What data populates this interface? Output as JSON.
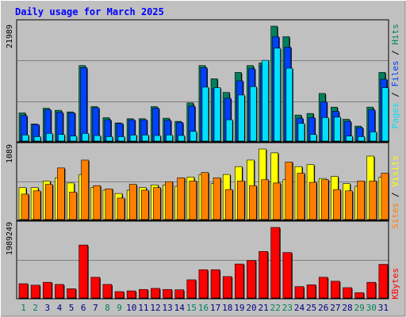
{
  "chart_data": [
    {
      "type": "bar",
      "title": "Daily usage for March 2025",
      "categories": [
        "1",
        "2",
        "3",
        "4",
        "5",
        "6",
        "7",
        "8",
        "9",
        "10",
        "11",
        "12",
        "13",
        "14",
        "15",
        "16",
        "17",
        "18",
        "19",
        "20",
        "21",
        "22",
        "23",
        "24",
        "25",
        "26",
        "27",
        "28",
        "29",
        "30",
        "31"
      ],
      "weekend_days": [
        "1",
        "2",
        "8",
        "9",
        "15",
        "16",
        "22",
        "23",
        "29",
        "30"
      ],
      "ytick": "21989",
      "side_label": {
        "parts": [
          "Pages",
          "Files",
          "Hits"
        ],
        "separator": " / "
      },
      "series": [
        {
          "name": "Hits",
          "color": "#00805c",
          "values": [
            5500,
            3400,
            6400,
            6000,
            5700,
            14500,
            6700,
            4600,
            3600,
            4400,
            4400,
            6700,
            4500,
            3900,
            7400,
            14500,
            12000,
            9400,
            13200,
            14500,
            15000,
            21989,
            20000,
            5100,
            5400,
            9200,
            6600,
            4300,
            3000,
            6600,
            13200
          ]
        },
        {
          "name": "Files",
          "color": "#0040ff",
          "values": [
            5000,
            3300,
            6100,
            5600,
            5500,
            14100,
            6500,
            4200,
            3500,
            4200,
            4200,
            6400,
            4100,
            3700,
            6800,
            14100,
            10200,
            8300,
            11600,
            13900,
            14500,
            20000,
            18000,
            4500,
            4600,
            7600,
            5800,
            3900,
            2700,
            6100,
            11900
          ]
        },
        {
          "name": "Pages",
          "color": "#00e0ff",
          "values": [
            1300,
            1000,
            1600,
            1400,
            1100,
            1600,
            1200,
            1000,
            1000,
            1300,
            1300,
            1200,
            1300,
            1200,
            2000,
            10400,
            10300,
            4200,
            8900,
            10500,
            15500,
            17800,
            14000,
            3500,
            1400,
            4600,
            4700,
            1100,
            1000,
            1900,
            10300
          ]
        }
      ]
    },
    {
      "type": "bar",
      "ytick": "1089",
      "side_label": {
        "parts": [
          "Sites",
          "Visits"
        ],
        "separator": " / "
      },
      "series": [
        {
          "name": "Visits",
          "color": "#ffff00",
          "values": [
            500,
            500,
            600,
            650,
            570,
            700,
            500,
            460,
            410,
            460,
            500,
            540,
            540,
            520,
            660,
            700,
            560,
            700,
            820,
            920,
            1089,
            1030,
            620,
            820,
            850,
            640,
            670,
            560,
            520,
            980,
            660
          ]
        },
        {
          "name": "Sites",
          "color": "#ff8000",
          "values": [
            400,
            450,
            550,
            800,
            430,
            920,
            530,
            480,
            340,
            550,
            460,
            500,
            590,
            650,
            600,
            730,
            650,
            470,
            600,
            530,
            620,
            570,
            890,
            720,
            580,
            620,
            470,
            450,
            600,
            600,
            720
          ]
        }
      ]
    },
    {
      "type": "bar",
      "ytick": "1989249",
      "side_label": {
        "parts": [
          "KBytes"
        ],
        "separator": ""
      },
      "series": [
        {
          "name": "KBytes",
          "color": "#ff0000",
          "values": [
            420000,
            380000,
            460000,
            400000,
            280000,
            1500000,
            600000,
            400000,
            200000,
            220000,
            260000,
            290000,
            260000,
            250000,
            530000,
            810000,
            810000,
            620000,
            970000,
            1070000,
            1320000,
            1989249,
            1290000,
            340000,
            390000,
            600000,
            490000,
            310000,
            170000,
            460000,
            960000
          ]
        }
      ]
    }
  ]
}
